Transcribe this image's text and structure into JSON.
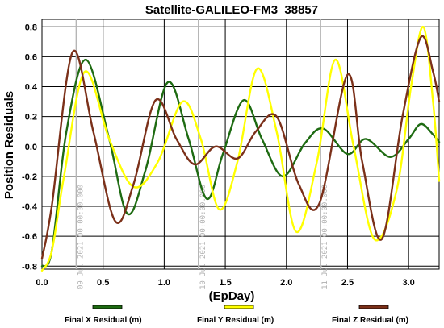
{
  "chart_data": {
    "type": "line",
    "title": "Satellite-GALILEO-FM3_38857",
    "xlabel": "(EpDay)",
    "ylabel": "Position Residuals",
    "xlim": [
      0,
      3.25
    ],
    "ylim": [
      -0.82,
      0.85
    ],
    "xticks": [
      0.0,
      0.5,
      1.0,
      1.5,
      2.0,
      2.5,
      3.0
    ],
    "xtick_labels": [
      "0.0",
      "0.5",
      "1.0",
      "1.5",
      "2.0",
      "2.5",
      "3.0"
    ],
    "yticks": [
      -0.8,
      -0.6,
      -0.4,
      -0.2,
      0.0,
      0.2,
      0.4,
      0.6,
      0.8
    ],
    "ytick_labels": [
      "-0.8",
      "-0.6",
      "-0.4",
      "-0.2",
      "0.0",
      "0.2",
      "0.4",
      "0.6",
      "0.8"
    ],
    "grid": true,
    "legend_position": "bottom",
    "date_markers": [
      {
        "x": 0.28,
        "label": "09 Jul 2021 00:00:00.000"
      },
      {
        "x": 1.28,
        "label": "10 Jul 2021 00:00:00.000"
      },
      {
        "x": 2.28,
        "label": "11 Jul 2021 00:00:00.000"
      }
    ],
    "series": [
      {
        "name": "Final X Residual (m)",
        "color": "#1e6b12",
        "x": [
          0.0,
          0.08,
          0.2,
          0.36,
          0.55,
          0.7,
          0.85,
          1.03,
          1.2,
          1.35,
          1.48,
          1.65,
          1.8,
          1.97,
          2.15,
          2.3,
          2.5,
          2.65,
          2.85,
          3.0,
          3.1,
          3.2,
          3.25
        ],
        "y": [
          -0.8,
          -0.7,
          0.1,
          0.58,
          0.05,
          -0.45,
          -0.15,
          0.43,
          0.05,
          -0.35,
          -0.05,
          0.31,
          0.05,
          -0.2,
          0.02,
          0.12,
          -0.05,
          0.05,
          -0.07,
          0.05,
          0.15,
          0.08,
          0.03
        ]
      },
      {
        "name": "Final Y Residual (m)",
        "color": "#ffff00",
        "x": [
          0.0,
          0.08,
          0.18,
          0.35,
          0.55,
          0.75,
          0.95,
          1.15,
          1.3,
          1.45,
          1.6,
          1.76,
          1.92,
          2.08,
          2.25,
          2.4,
          2.55,
          2.72,
          2.9,
          3.02,
          3.12,
          3.2,
          3.25
        ],
        "y": [
          -0.83,
          -0.7,
          -0.2,
          0.5,
          0.05,
          -0.27,
          -0.1,
          0.3,
          0.05,
          -0.42,
          -0.1,
          0.52,
          0.1,
          -0.57,
          -0.1,
          0.58,
          0.0,
          -0.62,
          -0.3,
          0.4,
          0.8,
          0.3,
          -0.23
        ]
      },
      {
        "name": "Final Z Residual (m)",
        "color": "#7b3019",
        "x": [
          0.0,
          0.08,
          0.25,
          0.42,
          0.6,
          0.75,
          0.93,
          1.1,
          1.25,
          1.42,
          1.6,
          1.75,
          1.92,
          2.1,
          2.27,
          2.5,
          2.62,
          2.78,
          2.95,
          3.1,
          3.2,
          3.25
        ],
        "y": [
          -0.75,
          -0.4,
          0.63,
          0.1,
          -0.5,
          -0.25,
          0.31,
          0.05,
          -0.12,
          0.0,
          -0.08,
          0.1,
          0.2,
          -0.25,
          -0.38,
          0.48,
          -0.1,
          -0.62,
          0.2,
          0.73,
          0.5,
          0.3
        ]
      }
    ]
  }
}
